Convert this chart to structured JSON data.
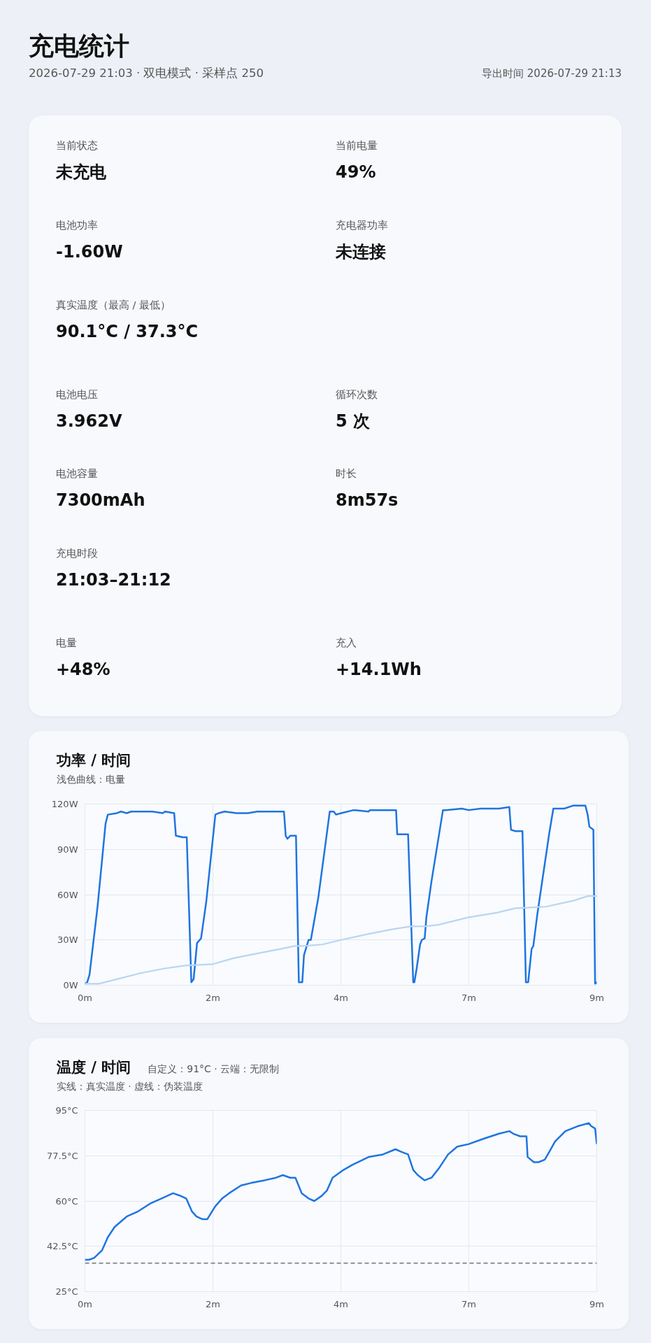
{
  "chart_data": [
    {
      "type": "other",
      "title": "充电统计",
      "subtitle": "2026-07-29 21:03 · 双电模式 · 采样点 250",
      "annotations": [
        "导出时间 2026-07-29 21:13",
        "当前状态",
        "未充电",
        "当前电量",
        "49%",
        "电池功率",
        "-1.60W",
        "充电器功率",
        "未连接",
        "真实温度（最高 / 最低）",
        "90.1°C / 37.3°C",
        "电池电压",
        "3.962V",
        "循环次数",
        "5 次",
        "电池容量",
        "7300mAh",
        "时长",
        "8m57s",
        "充电时段",
        "21:03–21:12",
        "电量",
        "+48%",
        "充入",
        "+14.1Wh"
      ]
    },
    {
      "type": "line",
      "title": "功率 / 时间",
      "subtitle": "浅色曲线：电量",
      "xlim": [
        0,
        8.95
      ],
      "xticks": [
        {
          "value": 0,
          "label": "0m"
        },
        {
          "value": 2.2375,
          "label": "2m"
        },
        {
          "value": 4.475,
          "label": "4m"
        },
        {
          "value": 6.7125,
          "label": "7m"
        },
        {
          "value": 8.95,
          "label": "9m"
        }
      ],
      "ylim": [
        0,
        120
      ],
      "yticks": [
        {
          "value": 0,
          "label": "0W"
        },
        {
          "value": 30,
          "label": "30W"
        },
        {
          "value": 60,
          "label": "60W"
        },
        {
          "value": 90,
          "label": "90W"
        },
        {
          "value": 120,
          "label": "120W"
        }
      ],
      "grid": true,
      "series": [
        {
          "color": "#1f74e0",
          "x": [
            0,
            0.04,
            0.08,
            0.22,
            0.36,
            0.4,
            0.56,
            0.63,
            0.73,
            0.81,
            1.18,
            1.36,
            1.4,
            1.56,
            1.59,
            1.71,
            1.78,
            1.86,
            1.9,
            1.96,
            2.03,
            2.12,
            2.28,
            2.34,
            2.44,
            2.65,
            2.85,
            3.01,
            3.48,
            3.51,
            3.54,
            3.59,
            3.69,
            3.74,
            3.8,
            3.83,
            3.91,
            3.95,
            4.08,
            4.2,
            4.28,
            4.35,
            4.39,
            4.48,
            4.7,
            4.96,
            4.98,
            5.44,
            5.46,
            5.65,
            5.74,
            5.76,
            5.8,
            5.86,
            5.89,
            5.94,
            5.97,
            6.06,
            6.26,
            6.31,
            6.59,
            6.71,
            6.92,
            7.24,
            7.42,
            7.45,
            7.53,
            7.65,
            7.71,
            7.75,
            7.81,
            7.84,
            7.91,
            8.12,
            8.19,
            8.38,
            8.54,
            8.63,
            8.75,
            8.79,
            8.82,
            8.89,
            8.92,
            8.95
          ],
          "values": [
            1,
            2,
            7,
            52,
            107,
            113,
            114,
            115,
            114,
            115,
            115,
            114,
            115,
            114,
            99,
            98,
            98,
            2,
            4,
            28,
            31,
            55,
            113,
            114,
            115,
            114,
            114,
            115,
            115,
            99,
            97,
            99,
            99,
            2,
            2,
            20,
            30,
            30,
            58,
            92,
            115,
            115,
            113,
            114,
            116,
            115,
            116,
            116,
            100,
            100,
            2,
            2,
            11,
            27,
            30,
            31,
            45,
            69,
            116,
            116,
            117,
            116,
            117,
            117,
            118,
            103,
            102,
            102,
            2,
            2,
            24,
            26,
            47,
            101,
            117,
            117,
            119,
            119,
            119,
            113,
            105,
            103,
            1,
            2
          ]
        },
        {
          "color": "#b9d5f3",
          "x": [
            0,
            0.24,
            0.56,
            0.97,
            1.38,
            1.75,
            2.24,
            2.61,
            3.01,
            3.42,
            3.67,
            3.83,
            4.15,
            4.48,
            4.96,
            5.37,
            5.7,
            5.94,
            6.18,
            6.71,
            7.2,
            7.53,
            8.06,
            8.54,
            8.79,
            8.95
          ],
          "values": [
            1,
            1,
            4,
            8,
            11,
            13,
            14,
            18,
            21,
            24,
            26,
            26,
            27,
            30,
            34,
            37,
            39,
            39,
            40,
            45,
            48,
            51,
            52,
            56,
            59,
            59
          ]
        }
      ]
    },
    {
      "type": "line",
      "title": "温度 / 时间",
      "subtitle": "实线：真实温度 · 虚线：伪装温度",
      "annotations": [
        "自定义：91°C · 云端：无限制"
      ],
      "xlim": [
        0,
        8.95
      ],
      "xticks": [
        {
          "value": 0,
          "label": "0m"
        },
        {
          "value": 2.2375,
          "label": "2m"
        },
        {
          "value": 4.475,
          "label": "4m"
        },
        {
          "value": 6.7125,
          "label": "7m"
        },
        {
          "value": 8.95,
          "label": "9m"
        }
      ],
      "ylim": [
        25,
        95
      ],
      "yticks": [
        {
          "value": 25,
          "label": "25°C"
        },
        {
          "value": 42.5,
          "label": "42.5°C"
        },
        {
          "value": 60,
          "label": "60°C"
        },
        {
          "value": 77.5,
          "label": "77.5°C"
        },
        {
          "value": 95,
          "label": "95°C"
        }
      ],
      "grid": true,
      "series": [
        {
          "color": "#1f74e0",
          "x": [
            0,
            0.07,
            0.16,
            0.3,
            0.4,
            0.52,
            0.73,
            0.93,
            1.14,
            1.34,
            1.54,
            1.67,
            1.77,
            1.87,
            1.95,
            2.05,
            2.14,
            2.28,
            2.4,
            2.52,
            2.73,
            2.91,
            3.14,
            3.34,
            3.46,
            3.59,
            3.68,
            3.79,
            3.91,
            4.01,
            4.14,
            4.23,
            4.33,
            4.52,
            4.68,
            4.96,
            5.21,
            5.43,
            5.53,
            5.65,
            5.74,
            5.82,
            5.94,
            6.06,
            6.2,
            6.35,
            6.51,
            6.71,
            6.96,
            7.24,
            7.42,
            7.49,
            7.61,
            7.72,
            7.74,
            7.85,
            7.93,
            8.04,
            8.12,
            8.22,
            8.4,
            8.63,
            8.81,
            8.85,
            8.92,
            8.95
          ],
          "values": [
            37.3,
            37.3,
            38,
            41,
            46,
            50,
            54,
            56,
            59,
            61,
            63,
            62,
            61,
            56,
            54,
            53,
            53,
            58,
            61,
            63,
            66,
            67,
            68,
            69,
            70,
            69,
            69,
            63,
            61,
            60,
            62,
            64,
            69,
            72,
            74,
            77,
            78,
            80,
            79,
            78,
            72,
            70,
            68,
            69,
            73,
            78,
            81,
            82,
            84,
            86,
            87,
            86,
            85,
            85,
            77,
            75,
            75,
            76,
            79,
            83,
            87,
            89,
            90.1,
            89,
            88,
            82
          ]
        },
        {
          "color": "#9a9a9a",
          "line_style": "dashed",
          "x": [
            0,
            8.95
          ],
          "values": [
            36,
            36
          ]
        }
      ]
    }
  ]
}
